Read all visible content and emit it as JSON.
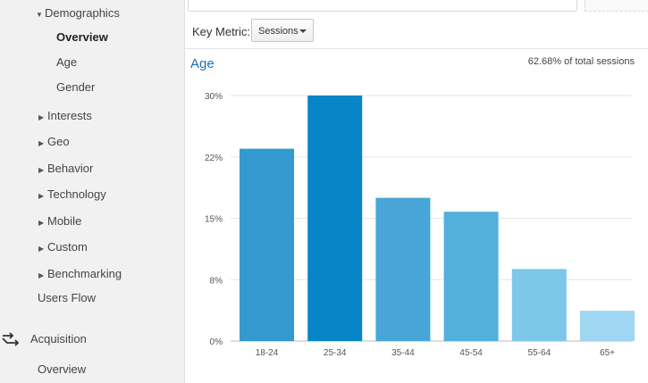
{
  "sidebar": {
    "demographics": {
      "label": "Demographics"
    },
    "demographics_items": [
      {
        "label": "Overview",
        "selected": true
      },
      {
        "label": "Age"
      },
      {
        "label": "Gender"
      }
    ],
    "sections": [
      {
        "label": "Interests"
      },
      {
        "label": "Geo"
      },
      {
        "label": "Behavior"
      },
      {
        "label": "Technology"
      },
      {
        "label": "Mobile"
      },
      {
        "label": "Custom"
      },
      {
        "label": "Benchmarking"
      }
    ],
    "users_flow": {
      "label": "Users Flow"
    },
    "acquisition": {
      "label": "Acquisition",
      "icon": "acquisition-arrows-icon"
    },
    "acquisition_overview": {
      "label": "Overview"
    }
  },
  "key_metric": {
    "label": "Key Metric:",
    "selected": "Sessions"
  },
  "chart_header": {
    "title": "Age",
    "subtitle": "62.68% of total sessions"
  },
  "chart_data": {
    "type": "bar",
    "title": "Age",
    "categories": [
      "18-24",
      "25-34",
      "35-44",
      "45-54",
      "55-64",
      "65+"
    ],
    "values": [
      23.5,
      30,
      17.5,
      15.8,
      8.8,
      3.7
    ],
    "ylim": [
      0,
      30
    ],
    "yticks": [
      "0%",
      "8%",
      "15%",
      "22%",
      "30%"
    ],
    "grid": true,
    "colors": [
      "#3399cf",
      "#0885c6",
      "#47a6d7",
      "#52b0dd",
      "#7cc7ea",
      "#9fd6f1"
    ]
  }
}
